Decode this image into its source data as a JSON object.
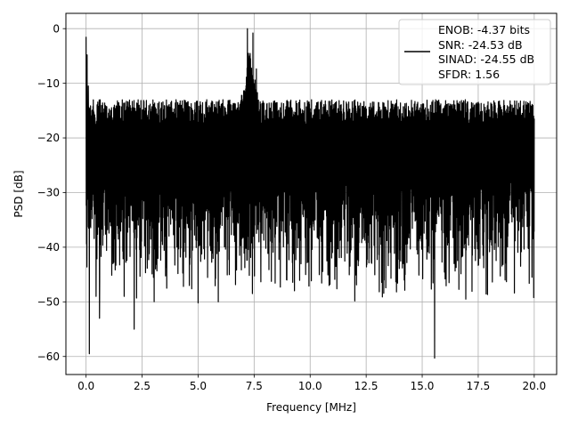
{
  "chart_data": {
    "type": "line",
    "title": "",
    "xlabel": "Frequency [MHz]",
    "ylabel": "PSD [dB]",
    "xlim": [
      -0.9,
      21.0
    ],
    "ylim": [
      -63.3,
      2.8
    ],
    "xticks": [
      0.0,
      2.5,
      5.0,
      7.5,
      10.0,
      12.5,
      15.0,
      17.5,
      20.0
    ],
    "xtick_labels": [
      "0.0",
      "2.5",
      "5.0",
      "7.5",
      "10.0",
      "12.5",
      "15.0",
      "17.5",
      "20.0"
    ],
    "yticks": [
      0,
      -10,
      -20,
      -30,
      -40,
      -50,
      -60
    ],
    "ytick_labels": [
      "0",
      "−10",
      "−20",
      "−30",
      "−40",
      "−50",
      "−60"
    ],
    "grid": true,
    "legend_position": "top-right",
    "line_color": "#000000",
    "legend_lines": [
      "ENOB: -4.37 bits",
      "SNR: -24.53 dB",
      "SINAD: -24.55 dB",
      "SFDR: 1.56"
    ],
    "series": [
      {
        "noise_floor": {
          "x_range": [
            0.0,
            20.0
          ],
          "upper_envelope_db": -13,
          "median_db": -21,
          "lower_envelope_db": -38
        },
        "peaks": [
          {
            "x": 0.0,
            "y": -1.5
          },
          {
            "x": 0.05,
            "y": -4.8
          },
          {
            "x": 0.1,
            "y": -10.5
          },
          {
            "x": 7.2,
            "y": 0.0
          },
          {
            "x": 7.3,
            "y": -5.0
          },
          {
            "x": 7.45,
            "y": -7.2
          },
          {
            "x": 7.6,
            "y": -9.5
          }
        ],
        "troughs": [
          {
            "x": 0.15,
            "y": -59.5
          },
          {
            "x": 0.45,
            "y": -49.0
          },
          {
            "x": 0.6,
            "y": -53.0
          },
          {
            "x": 1.2,
            "y": -43.0
          },
          {
            "x": 1.7,
            "y": -49.0
          },
          {
            "x": 2.15,
            "y": -55.0
          },
          {
            "x": 3.6,
            "y": -47.5
          },
          {
            "x": 5.0,
            "y": -50.2
          },
          {
            "x": 5.9,
            "y": -50.0
          },
          {
            "x": 7.8,
            "y": -46.5
          },
          {
            "x": 9.8,
            "y": -45.0
          },
          {
            "x": 10.85,
            "y": -47.0
          },
          {
            "x": 13.3,
            "y": -46.0
          },
          {
            "x": 14.2,
            "y": -46.0
          },
          {
            "x": 15.55,
            "y": -60.3
          },
          {
            "x": 16.2,
            "y": -46.5
          },
          {
            "x": 16.95,
            "y": -49.5
          },
          {
            "x": 18.7,
            "y": -46.0
          },
          {
            "x": 19.9,
            "y": -45.5
          }
        ]
      }
    ]
  }
}
